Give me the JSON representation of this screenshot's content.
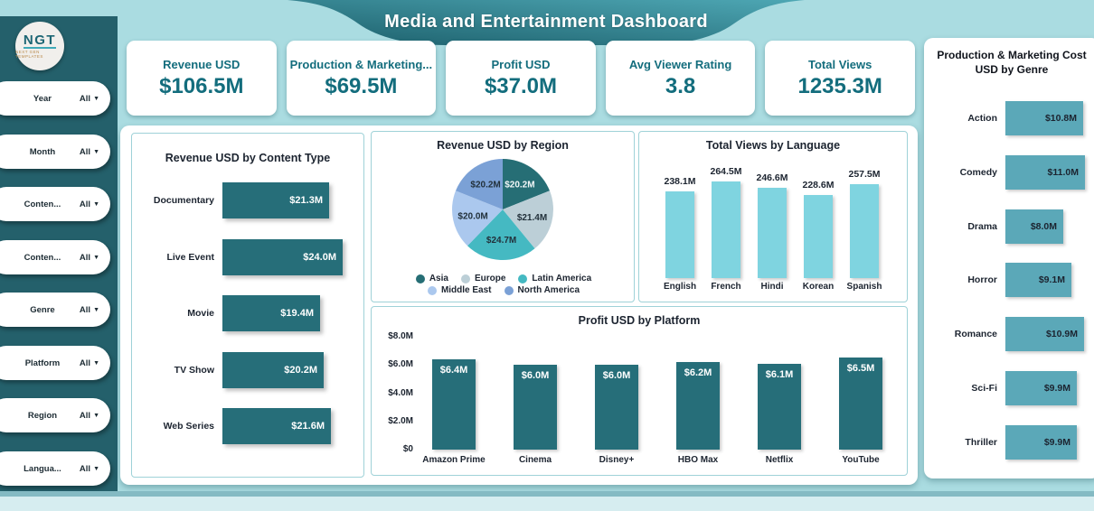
{
  "app": {
    "title": "Media and Entertainment Dashboard"
  },
  "logo": {
    "text": "NGT",
    "subtext": "NEXT GEN TEMPLATES"
  },
  "sidebar": {
    "filters": [
      {
        "label": "Year",
        "value": "All"
      },
      {
        "label": "Month",
        "value": "All"
      },
      {
        "label": "Conten...",
        "value": "All"
      },
      {
        "label": "Conten...",
        "value": "All"
      },
      {
        "label": "Genre",
        "value": "All"
      },
      {
        "label": "Platform",
        "value": "All"
      },
      {
        "label": "Region",
        "value": "All"
      },
      {
        "label": "Langua...",
        "value": "All"
      }
    ]
  },
  "kpis": [
    {
      "label": "Revenue USD",
      "value": "$106.5M"
    },
    {
      "label": "Production & Marketing...",
      "value": "$69.5M"
    },
    {
      "label": "Profit USD",
      "value": "$37.0M"
    },
    {
      "label": "Avg Viewer Rating",
      "value": "3.8"
    },
    {
      "label": "Total Views",
      "value": "1235.3M"
    }
  ],
  "colors": {
    "background": "#aadce1",
    "sidebar": "#24606b",
    "header_dark": "#1c5f6b",
    "header_light": "#4ea7b4",
    "kpi_text": "#136d7d",
    "dark_bar": "#266e79",
    "light_bar": "#7fd4e0",
    "genre_bar": "#5ba8b8",
    "footer": "#d6edf0"
  },
  "chart_data": [
    {
      "id": "revenue_by_content_type",
      "type": "bar",
      "orientation": "horizontal",
      "title": "Revenue USD by Content Type",
      "categories": [
        "Documentary",
        "Live Event",
        "Movie",
        "TV Show",
        "Web Series"
      ],
      "values": [
        21.3,
        24.0,
        19.4,
        20.2,
        21.6
      ],
      "value_labels": [
        "$21.3M",
        "$24.0M",
        "$19.4M",
        "$20.2M",
        "$21.6M"
      ],
      "unit": "USD millions",
      "bar_color": "#266e79",
      "value_text_color": "#ffffff"
    },
    {
      "id": "revenue_by_region",
      "type": "pie",
      "title": "Revenue USD by Region",
      "slices": [
        {
          "label": "Asia",
          "value": 20.2,
          "value_label": "$20.2M",
          "color": "#266e75",
          "text_color": "#f2f7f8"
        },
        {
          "label": "Europe",
          "value": 21.4,
          "value_label": "$21.4M",
          "color": "#bccfd7",
          "text_color": "#22313b"
        },
        {
          "label": "Latin America",
          "value": 24.7,
          "value_label": "$24.7M",
          "color": "#45b9c2",
          "text_color": "#22313b"
        },
        {
          "label": "Middle East",
          "value": 20.0,
          "value_label": "$20.0M",
          "color": "#abc8ee",
          "text_color": "#22313b"
        },
        {
          "label": "North America",
          "value": 20.2,
          "value_label": "$20.2M",
          "color": "#7ba1d6",
          "text_color": "#22313b"
        }
      ],
      "legend_position": "bottom"
    },
    {
      "id": "views_by_language",
      "type": "bar",
      "orientation": "vertical",
      "title": "Total Views by Language",
      "categories": [
        "English",
        "French",
        "Hindi",
        "Korean",
        "Spanish"
      ],
      "values": [
        238.1,
        264.5,
        246.6,
        228.6,
        257.5
      ],
      "value_labels": [
        "238.1M",
        "264.5M",
        "246.6M",
        "228.6M",
        "257.5M"
      ],
      "unit": "views millions",
      "bar_color": "#7fd4e0"
    },
    {
      "id": "profit_by_platform",
      "type": "bar",
      "orientation": "vertical",
      "title": "Profit USD by Platform",
      "categories": [
        "Amazon Prime",
        "Cinema",
        "Disney+",
        "HBO Max",
        "Netflix",
        "YouTube"
      ],
      "values": [
        6.4,
        6.0,
        6.0,
        6.2,
        6.1,
        6.5
      ],
      "value_labels": [
        "$6.4M",
        "$6.0M",
        "$6.0M",
        "$6.2M",
        "$6.1M",
        "$6.5M"
      ],
      "ylim": [
        0,
        8
      ],
      "y_ticks": [
        "$0",
        "$2.0M",
        "$4.0M",
        "$6.0M",
        "$8.0M"
      ],
      "unit": "USD millions",
      "bar_color": "#266e79",
      "value_text_color": "#ffffff"
    },
    {
      "id": "cost_by_genre",
      "type": "bar",
      "orientation": "horizontal",
      "title": "Production & Marketing Cost USD by Genre",
      "categories": [
        "Action",
        "Comedy",
        "Drama",
        "Horror",
        "Romance",
        "Sci-Fi",
        "Thriller"
      ],
      "values": [
        10.8,
        11.0,
        8.0,
        9.1,
        10.9,
        9.9,
        9.9
      ],
      "value_labels": [
        "$10.8M",
        "$11.0M",
        "$8.0M",
        "$9.1M",
        "$10.9M",
        "$9.9M",
        "$9.9M"
      ],
      "unit": "USD millions",
      "bar_color": "#5ba8b8",
      "value_text_color": "#1c2430"
    }
  ]
}
